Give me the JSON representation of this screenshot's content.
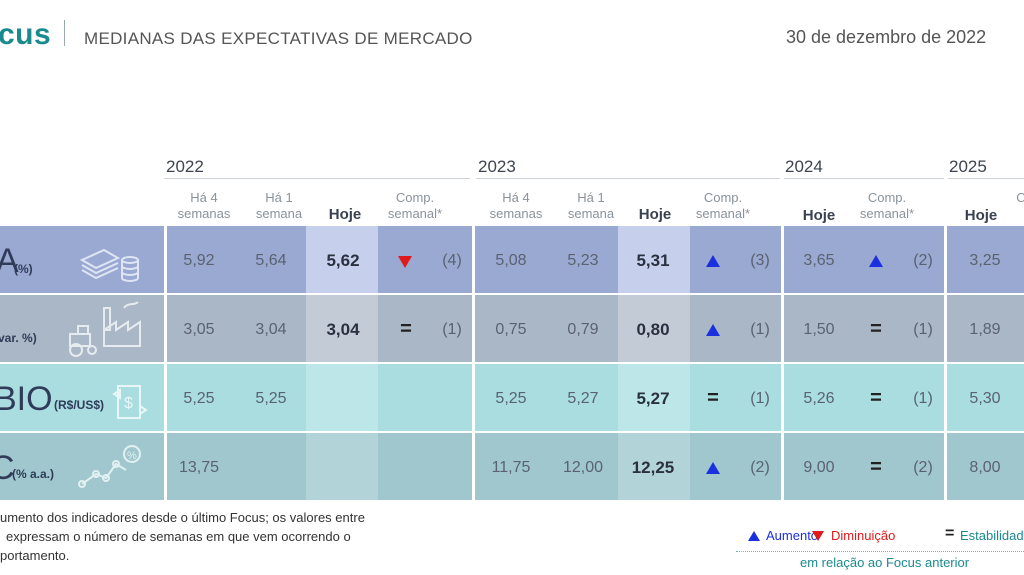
{
  "header": {
    "logo": "cus",
    "subtitle": "MEDIANAS DAS EXPECTATIVAS DE MERCADO",
    "date": "30 de dezembro de 2022"
  },
  "years": [
    "2022",
    "2023",
    "2024",
    "2025"
  ],
  "columns": {
    "ha4": "Há 4 semanas",
    "ha1": "Há 1 semana",
    "hoje": "Hoje",
    "comp": "Comp. semanal*",
    "comp_cut": "C s"
  },
  "rows": [
    {
      "label": "A",
      "unit": "(%)",
      "icon": "money-coins-icon",
      "y2022": {
        "ha4": "5,92",
        "ha1": "5,64",
        "hoje": "5,62",
        "trend": "down",
        "weeks": "(4)"
      },
      "y2023": {
        "ha4": "5,08",
        "ha1": "5,23",
        "hoje": "5,31",
        "trend": "up",
        "weeks": "(3)"
      },
      "y2024": {
        "hoje": "3,65",
        "trend": "up",
        "weeks": "(2)"
      },
      "y2025": {
        "hoje": "3,25"
      }
    },
    {
      "label": "",
      "unit": "var. %)",
      "icon": "factory-tractor-icon",
      "y2022": {
        "ha4": "3,05",
        "ha1": "3,04",
        "hoje": "3,04",
        "trend": "equal",
        "weeks": "(1)"
      },
      "y2023": {
        "ha4": "0,75",
        "ha1": "0,79",
        "hoje": "0,80",
        "trend": "up",
        "weeks": "(1)"
      },
      "y2024": {
        "hoje": "1,50",
        "trend": "equal",
        "weeks": "(1)"
      },
      "y2025": {
        "hoje": "1,89"
      }
    },
    {
      "label": "BIO",
      "unit": "(R$/US$)",
      "icon": "exchange-dollar-icon",
      "y2022": {
        "ha4": "5,25",
        "ha1": "5,25",
        "hoje": "",
        "trend": "",
        "weeks": ""
      },
      "y2023": {
        "ha4": "5,25",
        "ha1": "5,27",
        "hoje": "5,27",
        "trend": "equal",
        "weeks": "(1)"
      },
      "y2024": {
        "hoje": "5,26",
        "trend": "equal",
        "weeks": "(1)"
      },
      "y2025": {
        "hoje": "5,30"
      }
    },
    {
      "label": "C",
      "unit": "(% a.a.)",
      "icon": "rate-chart-icon",
      "y2022": {
        "ha4": "13,75",
        "ha1": "",
        "hoje": "",
        "trend": "",
        "weeks": ""
      },
      "y2023": {
        "ha4": "11,75",
        "ha1": "12,00",
        "hoje": "12,25",
        "trend": "up",
        "weeks": "(2)"
      },
      "y2024": {
        "hoje": "9,00",
        "trend": "equal",
        "weeks": "(2)"
      },
      "y2025": {
        "hoje": "8,00"
      }
    }
  ],
  "footnote": {
    "line1": "umento dos indicadores desde o último Focus; os valores entre",
    "line2": "expressam o número de semanas em que vem ocorrendo o",
    "line3": "portamento."
  },
  "legend": {
    "up": "Aumento",
    "down": "Diminuição",
    "equal_symbol": "=",
    "equal": "Estabilidad",
    "ref": "em relação ao Focus anterior",
    "colors": {
      "up": "#1a2fe0",
      "down": "#e01a1a",
      "teal": "#1a8a8f"
    }
  }
}
